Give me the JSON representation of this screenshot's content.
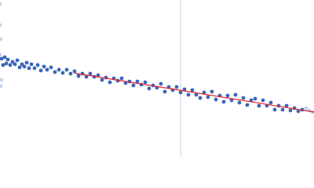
{
  "chart_data": {
    "type": "scatter",
    "xlim": [
      0,
      400
    ],
    "ylim": [
      0,
      200
    ],
    "vline": 230,
    "vline_color": "#c9d2ea",
    "series": [
      {
        "color": "#3a66b8",
        "x": [
          2,
          4,
          6,
          8,
          10,
          13,
          16,
          19,
          22,
          25,
          28,
          31,
          34,
          37,
          40,
          44,
          48,
          52,
          56,
          60,
          65,
          70,
          75,
          80,
          85,
          90,
          95,
          100,
          105,
          110,
          115,
          120,
          125,
          130,
          135,
          140,
          145,
          150,
          155,
          160,
          165,
          170,
          175,
          180,
          185,
          190,
          195,
          200,
          205,
          210,
          215,
          220,
          225,
          230,
          235,
          240,
          245,
          250,
          255,
          260,
          265,
          270,
          275,
          280,
          285,
          290,
          295,
          300,
          305,
          310,
          315,
          320,
          325,
          330,
          335,
          340,
          345,
          350,
          355,
          360,
          365,
          370,
          375,
          380,
          385
        ],
        "values": [
          125,
          117,
          127,
          119,
          124,
          117,
          121,
          118,
          123,
          114,
          118,
          115,
          120,
          113,
          118,
          113,
          117,
          110,
          115,
          111,
          114,
          108,
          111,
          107,
          111,
          106,
          109,
          103,
          106,
          102,
          106,
          102,
          104,
          98,
          101,
          95,
          100,
          97,
          100,
          94,
          96,
          91,
          96,
          92,
          95,
          87,
          91,
          88,
          93,
          83,
          89,
          85,
          89,
          82,
          86,
          79,
          85,
          79,
          75,
          82,
          76,
          83,
          73,
          78,
          70,
          78,
          72,
          79,
          69,
          75,
          66,
          72,
          74,
          65,
          72,
          65,
          69,
          60,
          65,
          60,
          65,
          59,
          62,
          58,
          60
        ]
      },
      {
        "color": "#c5d3ec",
        "x": [
          0,
          0,
          1,
          0,
          2,
          1,
          390,
          394,
          398
        ],
        "values": [
          195,
          168,
          150,
          130,
          98,
          90,
          62,
          59,
          57
        ]
      }
    ],
    "fit": {
      "color": "#e0202a",
      "x": [
        95,
        400
      ],
      "values": [
        106.6,
        57
      ]
    }
  }
}
